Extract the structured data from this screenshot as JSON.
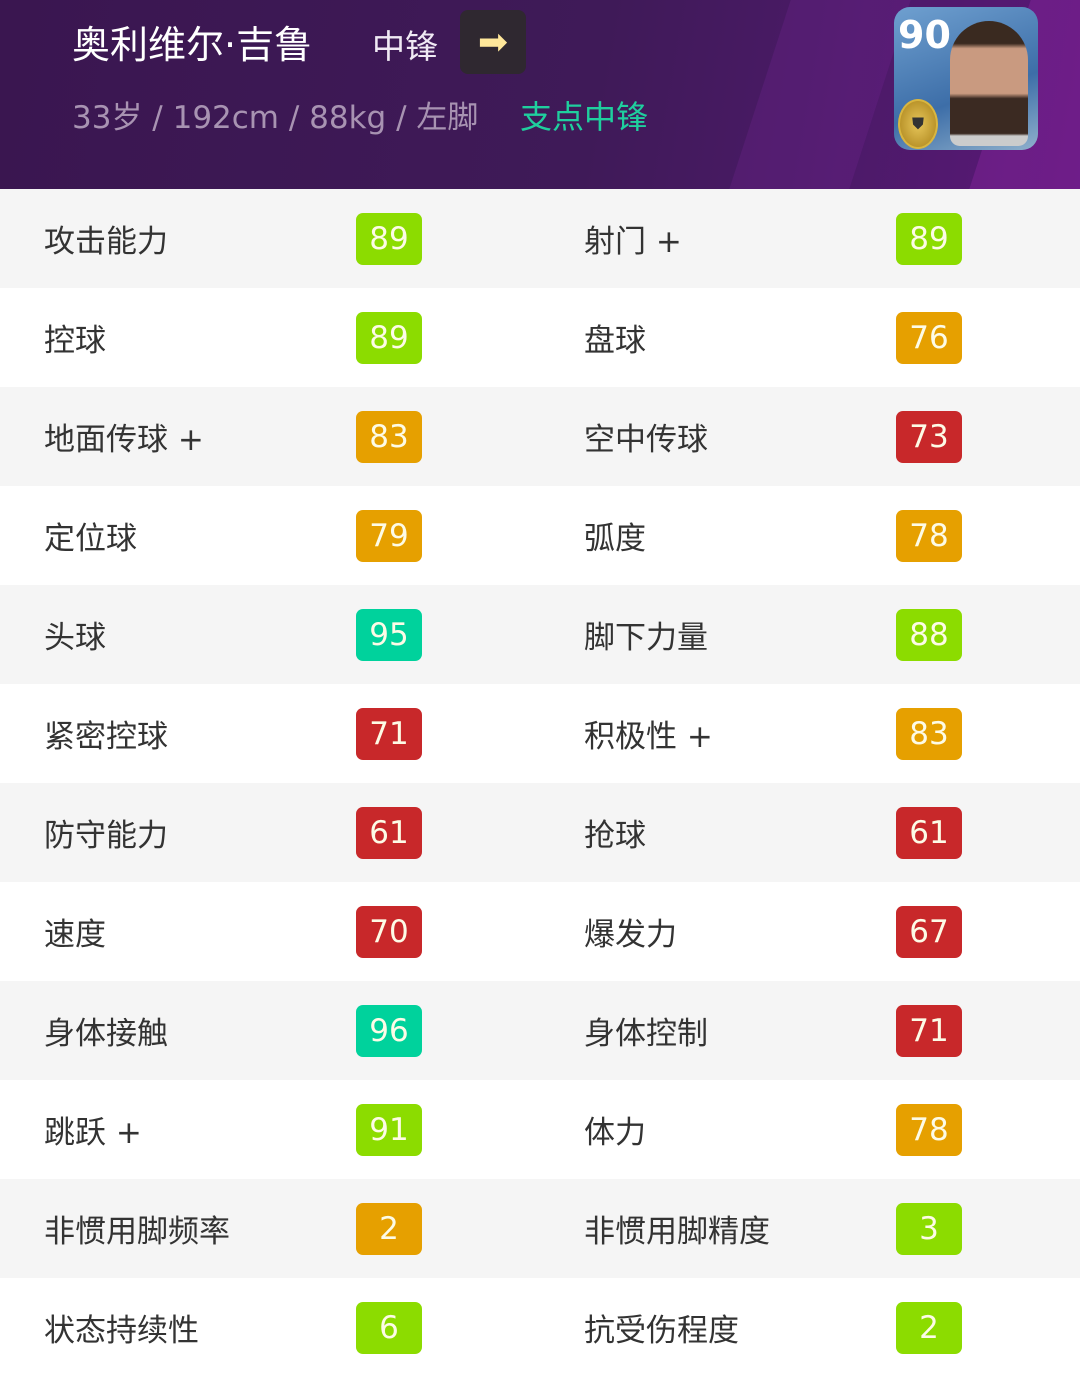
{
  "header": {
    "name": "奥利维尔·吉鲁",
    "position": "中锋",
    "arrow_icon": "arrow-right-icon",
    "info": "33岁 / 192cm / 88kg / 左脚",
    "role": "支点中锋",
    "card_rating": "90"
  },
  "colors": {
    "green": "#8cdc00",
    "orange": "#e6a000",
    "teal": "#00d29c",
    "red": "#c8282a"
  },
  "stats": [
    [
      {
        "label": "攻击能力",
        "value": "89",
        "color": "green"
      },
      {
        "label": "射门 +",
        "value": "89",
        "color": "green"
      }
    ],
    [
      {
        "label": "控球",
        "value": "89",
        "color": "green"
      },
      {
        "label": "盘球",
        "value": "76",
        "color": "orange"
      }
    ],
    [
      {
        "label": "地面传球 +",
        "value": "83",
        "color": "orange"
      },
      {
        "label": "空中传球",
        "value": "73",
        "color": "red"
      }
    ],
    [
      {
        "label": "定位球",
        "value": "79",
        "color": "orange"
      },
      {
        "label": "弧度",
        "value": "78",
        "color": "orange"
      }
    ],
    [
      {
        "label": "头球",
        "value": "95",
        "color": "teal"
      },
      {
        "label": "脚下力量",
        "value": "88",
        "color": "green"
      }
    ],
    [
      {
        "label": "紧密控球",
        "value": "71",
        "color": "red"
      },
      {
        "label": "积极性 +",
        "value": "83",
        "color": "orange"
      }
    ],
    [
      {
        "label": "防守能力",
        "value": "61",
        "color": "red"
      },
      {
        "label": "抢球",
        "value": "61",
        "color": "red"
      }
    ],
    [
      {
        "label": "速度",
        "value": "70",
        "color": "red"
      },
      {
        "label": "爆发力",
        "value": "67",
        "color": "red"
      }
    ],
    [
      {
        "label": "身体接触",
        "value": "96",
        "color": "teal"
      },
      {
        "label": "身体控制",
        "value": "71",
        "color": "red"
      }
    ],
    [
      {
        "label": "跳跃 +",
        "value": "91",
        "color": "green"
      },
      {
        "label": "体力",
        "value": "78",
        "color": "orange"
      }
    ],
    [
      {
        "label": "非惯用脚频率",
        "value": "2",
        "color": "orange"
      },
      {
        "label": "非惯用脚精度",
        "value": "3",
        "color": "green"
      }
    ],
    [
      {
        "label": "状态持续性",
        "value": "6",
        "color": "green"
      },
      {
        "label": "抗受伤程度",
        "value": "2",
        "color": "green"
      }
    ]
  ]
}
